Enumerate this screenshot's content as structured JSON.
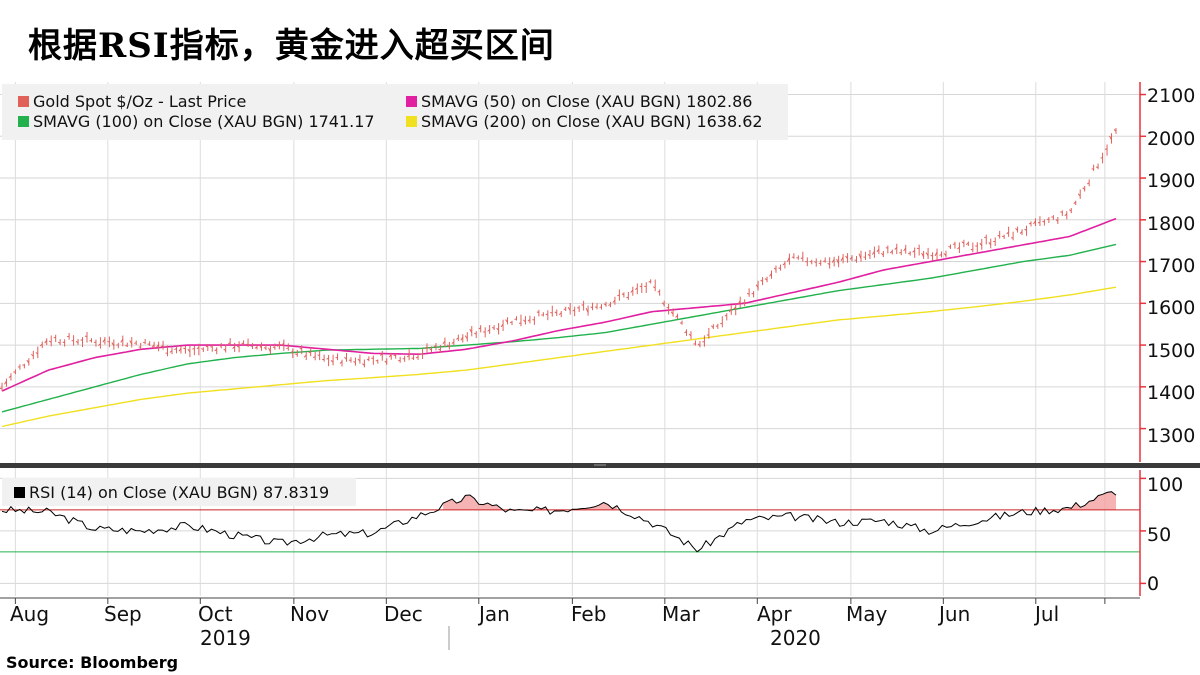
{
  "title": "根据RSI指标，黄金进入超买区间",
  "source": "Source:  Bloomberg",
  "colors": {
    "price": "#e0605a",
    "sma50": "#e020a0",
    "sma100": "#22b14c",
    "sma200": "#f0e020",
    "rsi": "#000000",
    "overbought": "#cc2222",
    "oversold": "#22b14c",
    "axis": "#e8333a"
  },
  "chart_data": [
    {
      "type": "line",
      "panel": "price",
      "legend": {
        "price": "Gold Spot $/Oz - Last Price",
        "sma50": "SMAVG (50)  on Close (XAU BGN)  1802.86",
        "sma100": "SMAVG (100)  on Close (XAU BGN) 1741.17",
        "sma200": "SMAVG (200)  on Close (XAU BGN) 1638.62"
      },
      "x": [
        "Aug 1",
        "Aug 15",
        "Sep 1",
        "Sep 15",
        "Oct 1",
        "Oct 15",
        "Nov 1",
        "Nov 15",
        "Dec 1",
        "Dec 15",
        "Jan 1",
        "Jan 15",
        "Feb 1",
        "Feb 15",
        "Mar 1",
        "Mar 15",
        "Apr 1",
        "Apr 15",
        "May 1",
        "May 15",
        "Jun 1",
        "Jun 15",
        "Jul 1",
        "Jul 15",
        "Jul 29"
      ],
      "series": [
        {
          "name": "Gold Spot $/Oz - Last Price",
          "values": [
            1400,
            1515,
            1510,
            1505,
            1485,
            1500,
            1495,
            1465,
            1465,
            1480,
            1520,
            1560,
            1575,
            1600,
            1645,
            1500,
            1610,
            1705,
            1700,
            1725,
            1720,
            1740,
            1775,
            1815,
            2010
          ]
        },
        {
          "name": "SMAVG (50)  on Close (XAU BGN)  1802.86",
          "values": [
            1390,
            1440,
            1470,
            1490,
            1500,
            1500,
            1500,
            1490,
            1480,
            1478,
            1490,
            1510,
            1535,
            1555,
            1580,
            1590,
            1600,
            1625,
            1650,
            1680,
            1700,
            1720,
            1740,
            1760,
            1802.86
          ]
        },
        {
          "name": "SMAVG (100)  on Close (XAU BGN) 1741.17",
          "values": [
            1340,
            1370,
            1400,
            1430,
            1455,
            1470,
            1480,
            1488,
            1490,
            1492,
            1500,
            1508,
            1518,
            1530,
            1550,
            1570,
            1590,
            1610,
            1630,
            1645,
            1660,
            1680,
            1700,
            1715,
            1741.17
          ]
        },
        {
          "name": "SMAVG (200)  on Close (XAU BGN) 1638.62",
          "values": [
            1305,
            1330,
            1350,
            1370,
            1385,
            1395,
            1405,
            1415,
            1422,
            1430,
            1440,
            1455,
            1470,
            1485,
            1500,
            1515,
            1530,
            1545,
            1560,
            1570,
            1580,
            1592,
            1605,
            1620,
            1638.62
          ]
        }
      ],
      "yticks": [
        1300,
        1400,
        1500,
        1600,
        1700,
        1800,
        1900,
        2000,
        2100
      ],
      "ylim": [
        1220,
        2130
      ]
    },
    {
      "type": "line",
      "panel": "rsi",
      "legend": {
        "rsi": "RSI (14)  on Close (XAU BGN) 87.8319"
      },
      "x": [
        "Aug 1",
        "Aug 15",
        "Sep 1",
        "Sep 15",
        "Oct 1",
        "Oct 15",
        "Nov 1",
        "Nov 15",
        "Dec 1",
        "Dec 15",
        "Jan 1",
        "Jan 15",
        "Feb 1",
        "Feb 15",
        "Mar 1",
        "Mar 15",
        "Apr 1",
        "Apr 15",
        "May 1",
        "May 15",
        "Jun 1",
        "Jun 15",
        "Jul 1",
        "Jul 15",
        "Jul 29"
      ],
      "series": [
        {
          "name": "RSI (14)  on Close (XAU BGN) 87.8319",
          "values": [
            70,
            68,
            52,
            50,
            55,
            46,
            38,
            46,
            48,
            65,
            82,
            68,
            70,
            78,
            58,
            32,
            60,
            64,
            58,
            60,
            50,
            60,
            68,
            72,
            87.83
          ]
        }
      ],
      "thresholds": [
        70,
        30
      ],
      "yticks": [
        0,
        50,
        100
      ],
      "ylim": [
        -12,
        108
      ]
    }
  ],
  "xaxis": {
    "months": [
      "Aug",
      "Sep",
      "Oct",
      "Nov",
      "Dec",
      "Jan",
      "Feb",
      "Mar",
      "Apr",
      "May",
      "Jun",
      "Jul"
    ],
    "years": [
      "2019",
      "2020"
    ]
  }
}
